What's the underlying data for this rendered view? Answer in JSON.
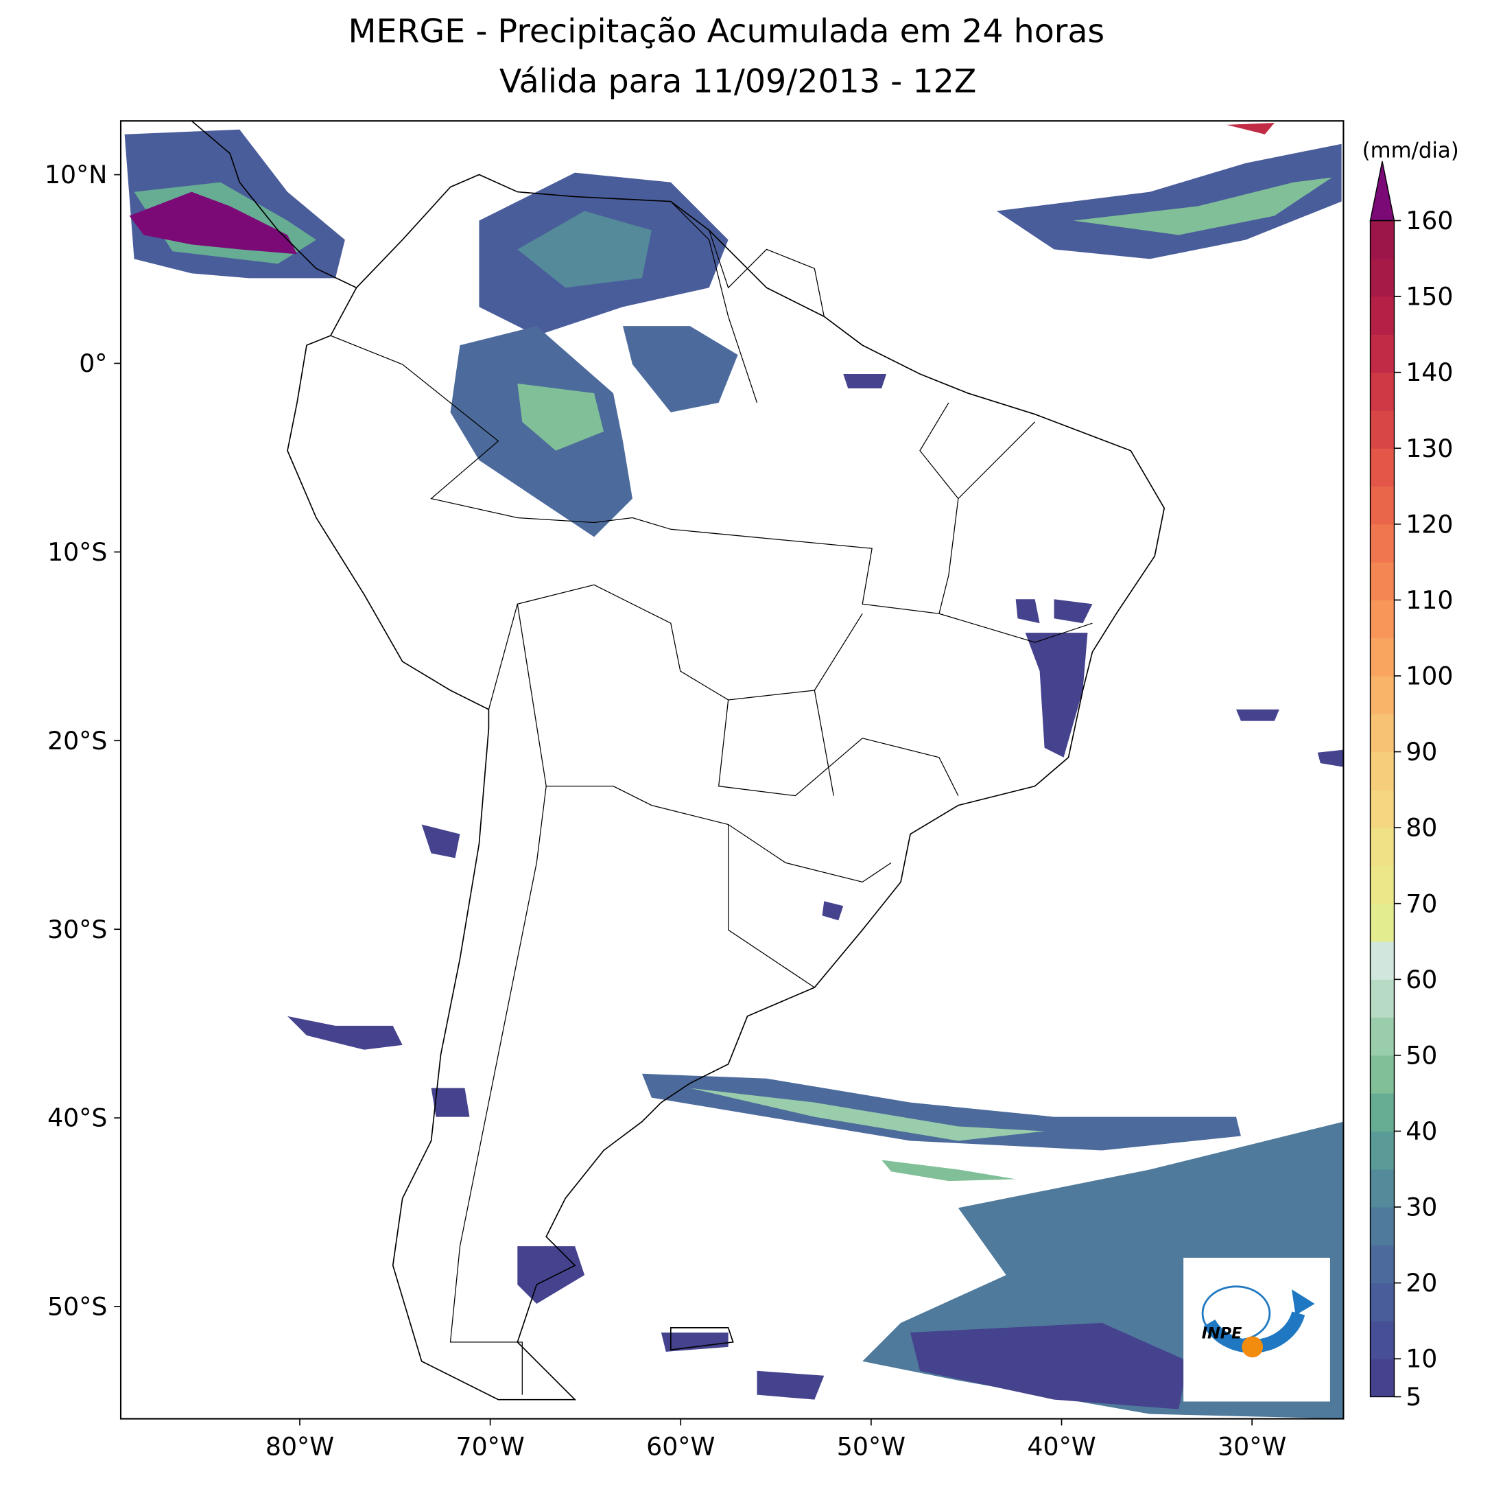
{
  "title": "MERGE - Precipitação Acumulada em 24 horas",
  "subtitle": "Válida para 11/09/2013 - 12Z",
  "map": {
    "lonlim": [
      -89.4,
      -25.2
    ],
    "latlim": [
      -55.95,
      12.85
    ],
    "xticks": [
      {
        "value": -80,
        "label": "80°W"
      },
      {
        "value": -70,
        "label": "70°W"
      },
      {
        "value": -60,
        "label": "60°W"
      },
      {
        "value": -50,
        "label": "50°W"
      },
      {
        "value": -40,
        "label": "40°W"
      },
      {
        "value": -30,
        "label": "30°W"
      }
    ],
    "yticks": [
      {
        "value": 10,
        "label": "10°N"
      },
      {
        "value": 0,
        "label": "0°"
      },
      {
        "value": -10,
        "label": "10°S"
      },
      {
        "value": -20,
        "label": "20°S"
      },
      {
        "value": -30,
        "label": "30°S"
      },
      {
        "value": -40,
        "label": "40°S"
      },
      {
        "value": -50,
        "label": "50°S"
      }
    ]
  },
  "colorbar": {
    "unit": "(mm/dia)",
    "levels": [
      5,
      10,
      15,
      20,
      25,
      30,
      35,
      40,
      45,
      50,
      55,
      60,
      65,
      70,
      75,
      80,
      85,
      90,
      95,
      100,
      105,
      110,
      115,
      120,
      125,
      130,
      135,
      140,
      145,
      150,
      155,
      160
    ],
    "colors": [
      "#45428e",
      "#474f97",
      "#4a5d9b",
      "#4c6b9c",
      "#4f7a9b",
      "#548a9a",
      "#5a9b98",
      "#66ad93",
      "#80bf98",
      "#9acdab",
      "#b6dac3",
      "#d1e7dd",
      "#e4ec90",
      "#ece88a",
      "#f0e086",
      "#f4d780",
      "#f6cd7a",
      "#f8c274",
      "#f9b46a",
      "#f9a560",
      "#f8965a",
      "#f48654",
      "#f0764f",
      "#ea664b",
      "#e35648",
      "#d94646",
      "#cf3845",
      "#c22b45",
      "#b52146",
      "#a61a48",
      "#9c1649"
    ],
    "extend_color": "#7b0a77",
    "ticks": [
      5,
      10,
      20,
      30,
      40,
      50,
      60,
      70,
      80,
      90,
      100,
      110,
      120,
      130,
      140,
      150,
      160
    ]
  },
  "logo": {
    "text": "INPE"
  }
}
